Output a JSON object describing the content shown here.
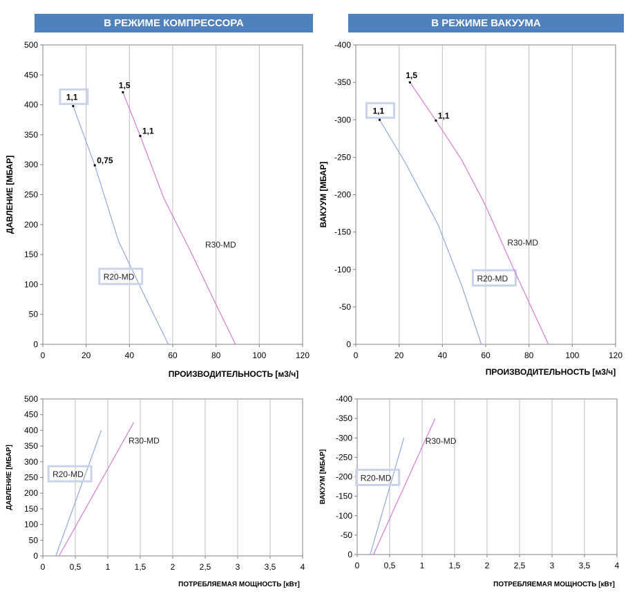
{
  "headers": {
    "compressor": "В РЕЖИМЕ КОМПРЕССОРА",
    "vacuum": "В РЕЖИМЕ ВАКУУМА"
  },
  "colors": {
    "banner": "#4f81bd",
    "r20": "#8fa8dc",
    "r30": "#d57ad5",
    "grid": "#bdbdbd",
    "frame": "#7f7f7f",
    "box": "#c9d3ea"
  },
  "chart_data": [
    {
      "id": "compressor-flow",
      "type": "line",
      "title": "В РЕЖИМЕ КОМПРЕССОРА",
      "xlabel": "ПРОИЗВОДИТЕЛЬНОСТЬ [м3/ч]",
      "ylabel": "ДАВЛЕНИЕ [МБАР]",
      "xlim": [
        0,
        120
      ],
      "ylim": [
        0,
        500
      ],
      "xticks": [
        0,
        20,
        40,
        60,
        80,
        100,
        120
      ],
      "xtick_labels": [
        "0",
        "20",
        "40",
        "60",
        "80",
        "100",
        "120"
      ],
      "yticks": [
        0,
        50,
        100,
        150,
        200,
        250,
        300,
        350,
        400,
        450,
        500
      ],
      "ytick_labels": [
        "0",
        "50",
        "100",
        "150",
        "200",
        "250",
        "300",
        "350",
        "400",
        "450",
        "500"
      ],
      "grid": true,
      "series": [
        {
          "name": "R20-MD",
          "color": "r20",
          "boxed": true,
          "label_at": [
            28,
            110
          ],
          "points": [
            [
              14,
              398
            ],
            [
              24,
              299
            ],
            [
              35,
              172
            ],
            [
              47,
              81
            ],
            [
              58,
              0
            ]
          ]
        },
        {
          "name": "R30-MD",
          "color": "r30",
          "boxed": false,
          "label_at": [
            75,
            164
          ],
          "points": [
            [
              37,
              421
            ],
            [
              45,
              348
            ],
            [
              56,
              243
            ],
            [
              68,
              157
            ],
            [
              79,
              74
            ],
            [
              89,
              0
            ]
          ]
        }
      ],
      "annotations": [
        {
          "text": "1,1",
          "x": 14,
          "y": 398,
          "boxed": true
        },
        {
          "text": "0,75",
          "x": 24,
          "y": 299,
          "boxed": false
        },
        {
          "text": "1,5",
          "x": 37,
          "y": 421,
          "boxed": false
        },
        {
          "text": "1,1",
          "x": 45,
          "y": 348,
          "boxed": false
        }
      ]
    },
    {
      "id": "vacuum-flow",
      "type": "line",
      "title": "В РЕЖИМЕ ВАКУУМА",
      "xlabel": "ПРОИЗВОДИТЕЛЬНОСТЬ [м3/ч]",
      "ylabel": "ВАКУУМ [МБАР]",
      "xlim": [
        0,
        120
      ],
      "ylim": [
        0,
        400
      ],
      "xticks": [
        0,
        20,
        40,
        60,
        80,
        100,
        120
      ],
      "xtick_labels": [
        "0",
        "20",
        "40",
        "60",
        "80",
        "100",
        "120"
      ],
      "yticks": [
        0,
        50,
        100,
        150,
        200,
        250,
        300,
        350,
        400
      ],
      "ytick_labels": [
        "0",
        "-50",
        "-100",
        "-150",
        "-200",
        "-250",
        "-300",
        "-350",
        "-400"
      ],
      "grid": true,
      "series": [
        {
          "name": "R20-MD",
          "color": "r20",
          "boxed": true,
          "label_at": [
            56,
            86
          ],
          "points": [
            [
              11,
              300
            ],
            [
              23,
              242
            ],
            [
              38,
              160
            ],
            [
              49,
              78
            ],
            [
              58,
              0
            ]
          ]
        },
        {
          "name": "R30-MD",
          "color": "r30",
          "boxed": false,
          "label_at": [
            70,
            134
          ],
          "points": [
            [
              25,
              350
            ],
            [
              37,
              299
            ],
            [
              49,
              246
            ],
            [
              60,
              185
            ],
            [
              73,
              100
            ],
            [
              89,
              0
            ]
          ]
        }
      ],
      "annotations": [
        {
          "text": "1,1",
          "x": 11,
          "y": 300,
          "boxed": true
        },
        {
          "text": "1,5",
          "x": 25,
          "y": 350,
          "boxed": false
        },
        {
          "text": "1,1",
          "x": 37,
          "y": 299,
          "boxed": false
        }
      ]
    },
    {
      "id": "compressor-power",
      "type": "line",
      "title": "",
      "xlabel": "ПОТРЕБЛЯЕМАЯ МОЩНОСТЬ [кВт]",
      "ylabel": "ДАВЛЕНИЕ [МБАР]",
      "xlim": [
        0,
        4
      ],
      "ylim": [
        0,
        500
      ],
      "xticks": [
        0,
        0.5,
        1,
        1.5,
        2,
        2.5,
        3,
        3.5,
        4
      ],
      "xtick_labels": [
        "0",
        "0,5",
        "1",
        "1,5",
        "2",
        "2,5",
        "3",
        "3,5",
        "4"
      ],
      "yticks": [
        0,
        50,
        100,
        150,
        200,
        250,
        300,
        350,
        400,
        450,
        500
      ],
      "ytick_labels": [
        "0",
        "50",
        "100",
        "150",
        "200",
        "250",
        "300",
        "350",
        "400",
        "450",
        "500"
      ],
      "grid": true,
      "series": [
        {
          "name": "R20-MD",
          "color": "r20",
          "boxed": true,
          "label_at": [
            0.15,
            255
          ],
          "points": [
            [
              0.2,
              0
            ],
            [
              0.9,
              400
            ]
          ]
        },
        {
          "name": "R30-MD",
          "color": "r30",
          "boxed": false,
          "label_at": [
            1.32,
            362
          ],
          "points": [
            [
              0.25,
              0
            ],
            [
              1.4,
              425
            ]
          ]
        }
      ],
      "annotations": []
    },
    {
      "id": "vacuum-power",
      "type": "line",
      "title": "",
      "xlabel": "ПОТРЕБЛЯЕМАЯ МОЩНОСТЬ [кВт]",
      "ylabel": "ВАКУУМ [МБАР]",
      "xlim": [
        0,
        4
      ],
      "ylim": [
        0,
        400
      ],
      "xticks": [
        0,
        0.5,
        1,
        1.5,
        2,
        2.5,
        3,
        3.5,
        4
      ],
      "xtick_labels": [
        "0",
        "0,5",
        "1",
        "1,5",
        "2",
        "2,5",
        "3",
        "3,5",
        "4"
      ],
      "yticks": [
        0,
        50,
        100,
        150,
        200,
        250,
        300,
        350,
        400
      ],
      "ytick_labels": [
        "0",
        "-50",
        "-100",
        "-150",
        "-200",
        "-250",
        "-300",
        "-350",
        "-400"
      ],
      "grid": true,
      "series": [
        {
          "name": "R20-MD",
          "color": "r20",
          "boxed": true,
          "label_at": [
            0.05,
            193
          ],
          "points": [
            [
              0.2,
              0
            ],
            [
              0.72,
              300
            ]
          ]
        },
        {
          "name": "R30-MD",
          "color": "r30",
          "boxed": false,
          "label_at": [
            1.05,
            288
          ],
          "points": [
            [
              0.25,
              0
            ],
            [
              1.2,
              350
            ]
          ]
        }
      ],
      "annotations": []
    }
  ]
}
